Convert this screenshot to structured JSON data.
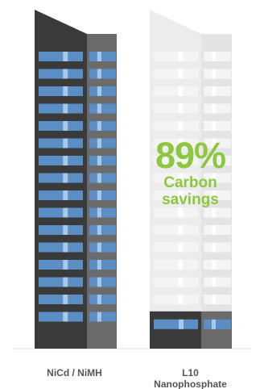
{
  "colors": {
    "accent_green": "#8dc63f",
    "tower_dark": "#3a3a3a",
    "tower_mid": "#6b6b6b",
    "window_blue": "#5b8ec4",
    "window_light": "#a8c8e8",
    "faded_tower": "#ececec",
    "faded_window": "#f4f4f4",
    "label_gray": "#555555",
    "baseline": "#dddddd"
  },
  "chart_data": {
    "type": "bar",
    "categories": [
      "NiCd / NiMH",
      "L10 Nanophosphate"
    ],
    "values": [
      100,
      11
    ],
    "ylim": [
      0,
      100
    ],
    "annotation": {
      "value": "89%",
      "label": "Carbon savings"
    },
    "grid": false,
    "legend": "none"
  },
  "labels": {
    "category_1": "NiCd / NiMH",
    "category_2_line1": "L10",
    "category_2_line2": "Nanophosphate"
  }
}
